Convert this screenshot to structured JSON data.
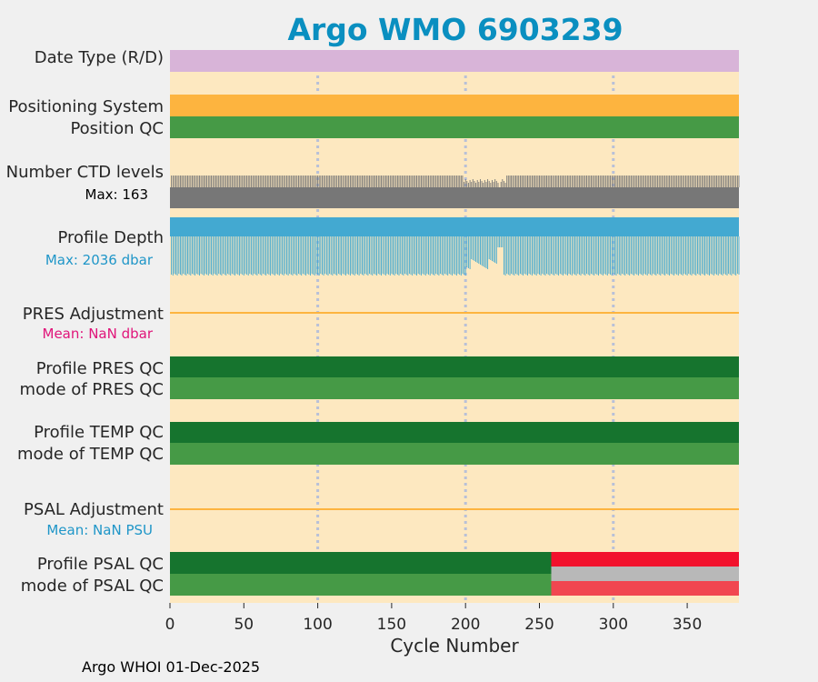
{
  "chart_data": {
    "type": "timeline",
    "title": "Argo WMO 6903239",
    "xlabel": "Cycle Number",
    "xlim": [
      0,
      385
    ],
    "xticks": [
      0,
      50,
      100,
      150,
      200,
      250,
      300,
      350
    ],
    "tick_labels": [
      "0",
      "50",
      "100",
      "150",
      "200",
      "250",
      "300",
      "350"
    ],
    "gridlines": [
      100,
      200,
      300
    ],
    "rows": [
      {
        "label": "Date Type (R/D)",
        "segments": [
          {
            "from": 0,
            "to": 385,
            "color": "#d8b4d8"
          }
        ]
      },
      {
        "label": "Positioning System",
        "segments": [
          {
            "from": 0,
            "to": 385,
            "color": "#fdb43f"
          }
        ]
      },
      {
        "label": "Position QC",
        "segments": [
          {
            "from": 0,
            "to": 385,
            "color": "#469a46"
          }
        ]
      },
      {
        "label": "Number CTD levels",
        "stat": "Max: 163",
        "max": 163
      },
      {
        "label": "Profile Depth",
        "stat": "Max: 2036 dbar",
        "max": 2036
      },
      {
        "label": "PRES Adjustment",
        "stat": "Mean:  NaN dbar"
      },
      {
        "label": "Profile PRES QC",
        "segments": [
          {
            "from": 0,
            "to": 385,
            "color": "#16742e"
          }
        ]
      },
      {
        "label": "mode of PRES QC",
        "segments": [
          {
            "from": 0,
            "to": 385,
            "color": "#469a46"
          }
        ]
      },
      {
        "label": "Profile TEMP QC",
        "segments": [
          {
            "from": 0,
            "to": 385,
            "color": "#16742e"
          }
        ]
      },
      {
        "label": "mode of TEMP QC",
        "segments": [
          {
            "from": 0,
            "to": 385,
            "color": "#469a46"
          }
        ]
      },
      {
        "label": "PSAL Adjustment",
        "stat": "Mean:  NaN PSU"
      },
      {
        "label": "Profile PSAL QC",
        "segments": [
          {
            "from": 0,
            "to": 258,
            "color": "#16742e"
          },
          {
            "from": 258,
            "to": 385,
            "color": "#f2112c"
          }
        ]
      },
      {
        "label": "mode of PSAL QC",
        "segments": [
          {
            "from": 0,
            "to": 258,
            "color": "#469a46"
          },
          {
            "from": 258,
            "to": 385,
            "color": "#f14650"
          }
        ]
      }
    ],
    "psal_mid_band": {
      "from": 258,
      "to": 385,
      "color": "#b8b8b8"
    },
    "colors": {
      "background": "#fde8c0",
      "title": "#0a8fc0",
      "ctd_bar": "#777777",
      "depth_bar": "#43a9d1",
      "adjustment_line": "#fdb43f",
      "grid": "#b8c0d8",
      "pres_stat": "#e0157a",
      "depth_stat": "#1f96c8",
      "psal_stat": "#1f96c8"
    }
  },
  "footer": "Argo WHOI 01-Dec-2025"
}
